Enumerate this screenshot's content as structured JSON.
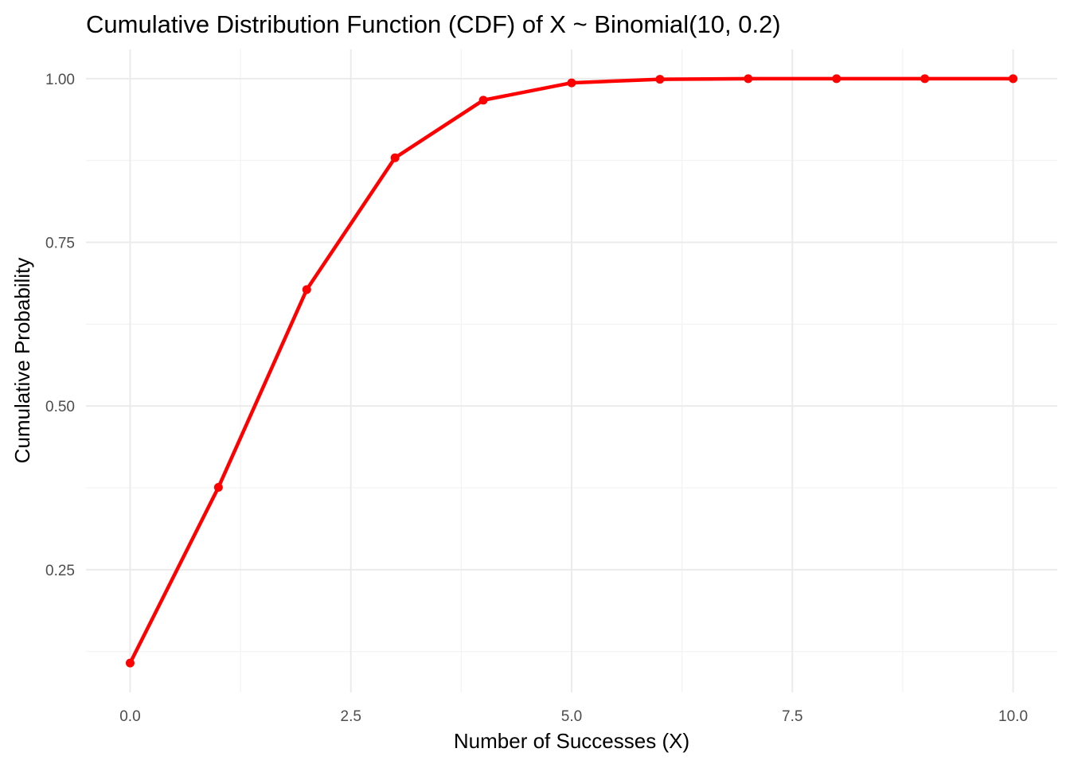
{
  "chart_data": {
    "type": "line",
    "title": "Cumulative Distribution Function (CDF) of X ~ Binomial(10, 0.2)",
    "xlabel": "Number of Successes (X)",
    "ylabel": "Cumulative Probability",
    "x": [
      0,
      1,
      2,
      3,
      4,
      5,
      6,
      7,
      8,
      9,
      10
    ],
    "series": [
      {
        "values": [
          0.107374,
          0.37581,
          0.6778,
          0.879126,
          0.967207,
          0.993631,
          0.999136,
          0.999922,
          0.999996,
          1.0,
          1.0
        ],
        "color": "#ff0000",
        "markers": true
      }
    ],
    "xlim": [
      -0.5,
      10.5
    ],
    "ylim": [
      0.0626,
      1.0448
    ],
    "xticks": [
      0,
      2.5,
      5,
      7.5,
      10
    ],
    "xtick_labels": [
      "0.0",
      "2.5",
      "5.0",
      "7.5",
      "10.0"
    ],
    "yticks": [
      0.25,
      0.5,
      0.75,
      1.0
    ],
    "ytick_labels": [
      "0.25",
      "0.50",
      "0.75",
      "1.00"
    ],
    "grid": true,
    "legend": "none",
    "background": "#ffffff"
  }
}
